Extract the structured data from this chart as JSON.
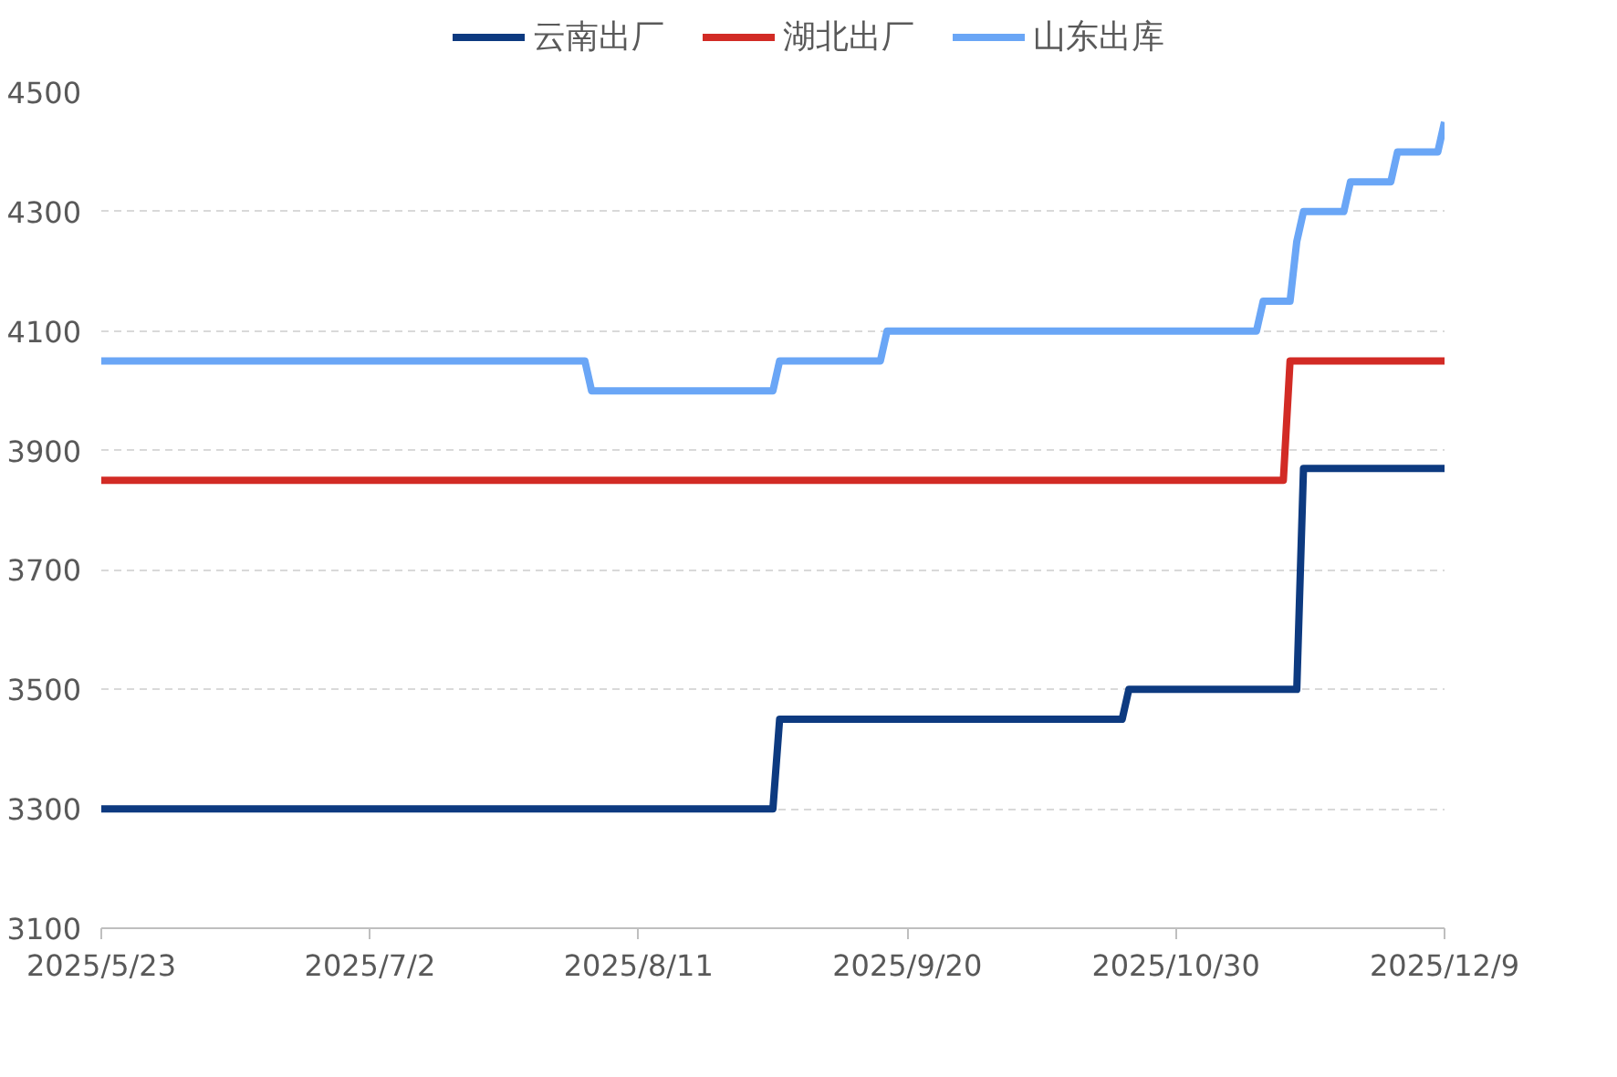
{
  "chart_data": {
    "type": "line",
    "legend": "top",
    "grid": "y",
    "marker": "none",
    "line_style": "solid",
    "xlim": [
      "2025-05-23",
      "2025-12-09"
    ],
    "xticks": [
      {
        "value": "2025-05-23",
        "label": "2025/5/23"
      },
      {
        "value": "2025-07-02",
        "label": "2025/7/2"
      },
      {
        "value": "2025-08-11",
        "label": "2025/8/11"
      },
      {
        "value": "2025-09-20",
        "label": "2025/9/20"
      },
      {
        "value": "2025-10-30",
        "label": "2025/10/30"
      },
      {
        "value": "2025-12-09",
        "label": "2025/12/9"
      }
    ],
    "ylim": [
      3100,
      4500
    ],
    "yticks": [
      3100,
      3300,
      3500,
      3700,
      3900,
      4100,
      4300,
      4500
    ],
    "series": [
      {
        "name": "云南出厂",
        "color": "#0d3a80",
        "x": [
          "2025-05-23",
          "2025-08-31",
          "2025-09-01",
          "2025-10-22",
          "2025-10-23",
          "2025-11-17",
          "2025-11-18",
          "2025-12-09"
        ],
        "values": [
          3300,
          3300,
          3450,
          3450,
          3500,
          3500,
          3870,
          3870
        ]
      },
      {
        "name": "湖北出厂",
        "color": "#d22b25",
        "x": [
          "2025-05-23",
          "2025-11-15",
          "2025-11-16",
          "2025-12-09"
        ],
        "values": [
          3850,
          3850,
          4050,
          4050
        ]
      },
      {
        "name": "山东出库",
        "color": "#6aa6f6",
        "x": [
          "2025-05-23",
          "2025-08-03",
          "2025-08-04",
          "2025-08-31",
          "2025-09-01",
          "2025-09-16",
          "2025-09-17",
          "2025-11-11",
          "2025-11-12",
          "2025-11-16",
          "2025-11-17",
          "2025-11-18",
          "2025-11-24",
          "2025-11-25",
          "2025-12-01",
          "2025-12-02",
          "2025-12-08",
          "2025-12-09"
        ],
        "values": [
          4050,
          4050,
          4000,
          4000,
          4050,
          4050,
          4100,
          4100,
          4150,
          4150,
          4250,
          4300,
          4300,
          4350,
          4350,
          4400,
          4400,
          4450
        ]
      }
    ]
  }
}
